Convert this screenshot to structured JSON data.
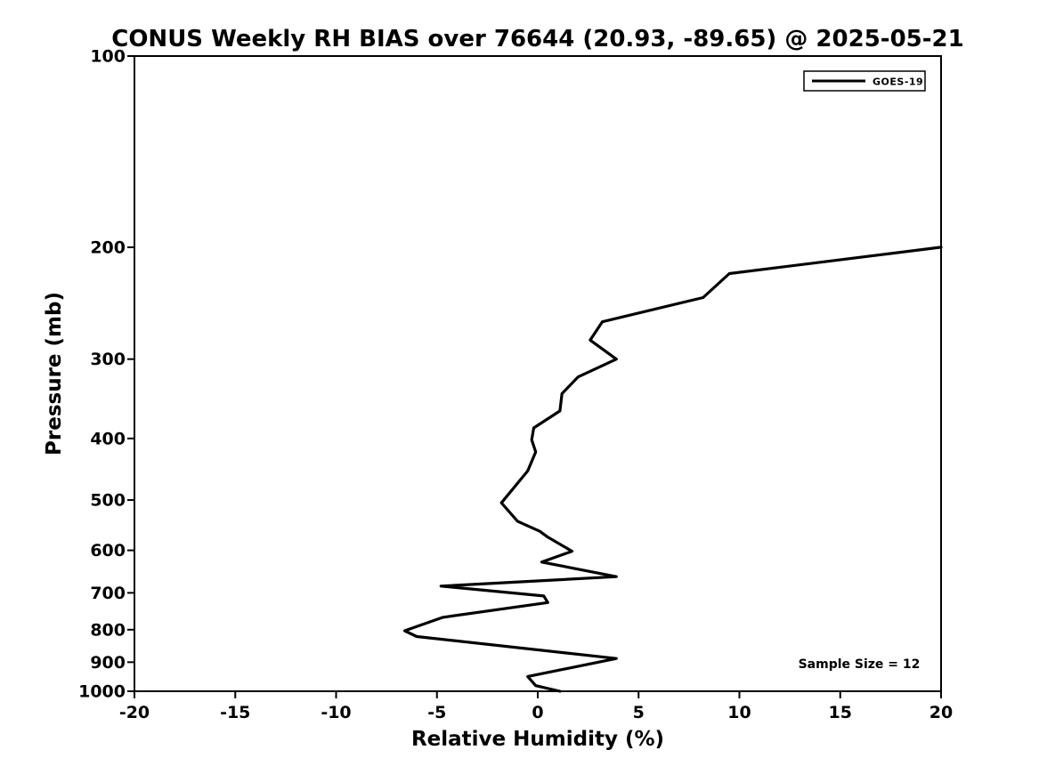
{
  "chart_data": {
    "type": "line",
    "title": "CONUS Weekly RH BIAS over 76644 (20.93, -89.65) @ 2025-05-21",
    "xlabel": "Relative Humidity (%)",
    "ylabel": "Pressure (mb)",
    "xlim": [
      -20,
      20
    ],
    "ylim": [
      100,
      1000
    ],
    "y_scale": "log",
    "y_inverted": true,
    "grid": false,
    "legend_position": "upper right",
    "x_ticks": [
      -20,
      -15,
      -10,
      -5,
      0,
      5,
      10,
      15,
      20
    ],
    "x_tick_labels": [
      "-20",
      "-15",
      "-10",
      "-5",
      "0",
      "5",
      "10",
      "15",
      "20"
    ],
    "y_ticks": [
      100,
      200,
      300,
      400,
      500,
      600,
      700,
      800,
      900,
      1000
    ],
    "y_tick_labels": [
      "100",
      "200",
      "300",
      "400",
      "500",
      "600",
      "700",
      "800",
      "900",
      "1000"
    ],
    "series": [
      {
        "name": "GOES-19",
        "color": "#000000",
        "points": [
          [
            20.0,
            200
          ],
          [
            9.5,
            220
          ],
          [
            8.2,
            240
          ],
          [
            3.2,
            262
          ],
          [
            2.6,
            280
          ],
          [
            3.9,
            300
          ],
          [
            2.0,
            320
          ],
          [
            1.2,
            340
          ],
          [
            1.1,
            362
          ],
          [
            -0.2,
            385
          ],
          [
            -0.3,
            402
          ],
          [
            -0.1,
            420
          ],
          [
            -0.5,
            450
          ],
          [
            -1.8,
            505
          ],
          [
            -1.5,
            518
          ],
          [
            -1.0,
            540
          ],
          [
            0.1,
            560
          ],
          [
            0.5,
            572
          ],
          [
            1.7,
            602
          ],
          [
            0.2,
            626
          ],
          [
            3.9,
            660
          ],
          [
            -4.8,
            683
          ],
          [
            0.3,
            708
          ],
          [
            0.5,
            725
          ],
          [
            -4.7,
            765
          ],
          [
            -6.6,
            803
          ],
          [
            -6.0,
            820
          ],
          [
            3.9,
            888
          ],
          [
            -0.5,
            948
          ],
          [
            -0.1,
            980
          ],
          [
            1.1,
            1000
          ]
        ]
      }
    ],
    "annotations": [
      {
        "text": "Sample Size = 12"
      }
    ],
    "colors": {
      "line": "#000000",
      "text": "#000000",
      "background": "#ffffff"
    }
  }
}
